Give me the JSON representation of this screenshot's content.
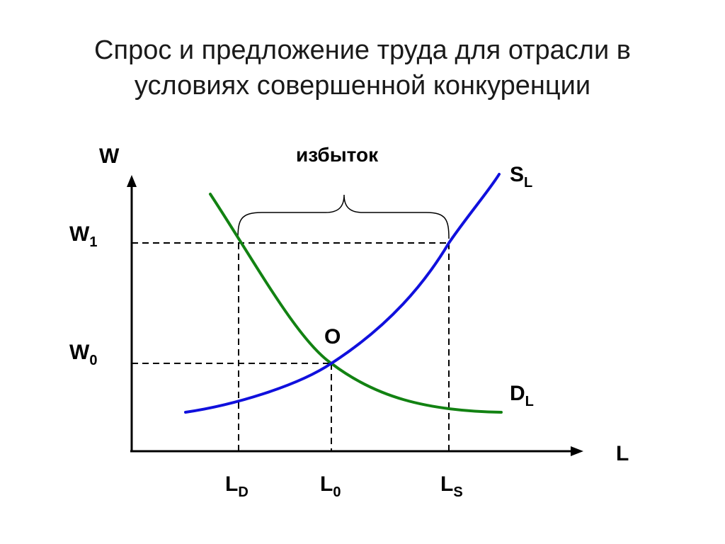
{
  "title": {
    "line1": "Спрос и предложение труда для отрасли в",
    "line2": "условиях совершенной конкуренции"
  },
  "axes": {
    "y_label": "W",
    "x_label": "L"
  },
  "wage_levels": {
    "w1": {
      "main": "W",
      "sub": "1"
    },
    "w0": {
      "main": "W",
      "sub": "0"
    }
  },
  "labor_levels": {
    "ld": {
      "main": "L",
      "sub": "D"
    },
    "l0": {
      "main": "L",
      "sub": "0"
    },
    "ls": {
      "main": "L",
      "sub": "S"
    }
  },
  "curves": {
    "supply": {
      "main": "S",
      "sub": "L",
      "color": "#1010dd"
    },
    "demand": {
      "main": "D",
      "sub": "L",
      "color": "#128212"
    }
  },
  "equilibrium_label": "O",
  "surplus_label": "избыток",
  "colors": {
    "axis": "#000000",
    "guides": "#000000"
  }
}
